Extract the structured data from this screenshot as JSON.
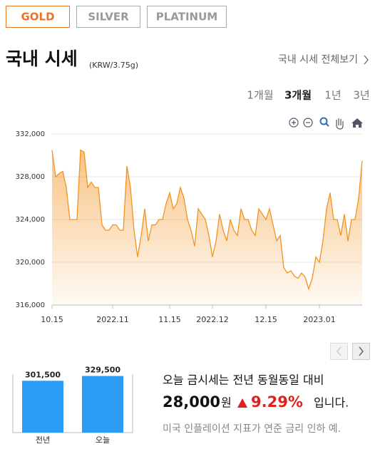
{
  "tabs": [
    "GOLD",
    "SILVER",
    "PLATINUM"
  ],
  "heading": {
    "title": "국내 시세",
    "unit": "(KRW/3.75g)",
    "link": "국내 시세 전체보기"
  },
  "periods": [
    "1개월",
    "3개월",
    "1년",
    "3년"
  ],
  "summary": {
    "line1": "오늘 금시세는 전년 동월동일 대비",
    "amount": "28,000",
    "currency": "원",
    "percent": "9.29%",
    "ending": "입니다.",
    "note": "미국 인플레이션 지표가 연준 금리 인하 예."
  },
  "chart_data": [
    {
      "type": "area",
      "color": "#f39320",
      "grid": true,
      "categories": [
        "10.15",
        null,
        null,
        null,
        null,
        null,
        null,
        null,
        null,
        null,
        null,
        null,
        null,
        null,
        null,
        null,
        null,
        "2022.11",
        null,
        null,
        null,
        null,
        null,
        null,
        null,
        null,
        null,
        null,
        null,
        null,
        null,
        null,
        null,
        "11.15",
        null,
        null,
        null,
        null,
        null,
        null,
        null,
        null,
        null,
        null,
        null,
        "2022.12",
        null,
        null,
        null,
        null,
        null,
        null,
        null,
        null,
        null,
        null,
        null,
        null,
        null,
        null,
        "12.15",
        null,
        null,
        null,
        null,
        null,
        null,
        null,
        null,
        null,
        null,
        null,
        null,
        null,
        null,
        "2023.01",
        null,
        null,
        null,
        null,
        null,
        null,
        null,
        null,
        null,
        null,
        null,
        null
      ],
      "values": [
        330500,
        328000,
        328300,
        328500,
        327000,
        324000,
        324000,
        324000,
        330500,
        330300,
        327000,
        327500,
        327000,
        327000,
        323500,
        323000,
        323000,
        323500,
        323500,
        323000,
        323000,
        329000,
        327000,
        323000,
        320500,
        322500,
        325000,
        322000,
        323500,
        323500,
        324000,
        324000,
        325500,
        326500,
        325000,
        325500,
        327000,
        326000,
        324000,
        323000,
        321500,
        325000,
        324500,
        324000,
        322500,
        320500,
        322000,
        324500,
        323000,
        322000,
        324000,
        323000,
        322500,
        325000,
        324000,
        324000,
        323000,
        322500,
        325000,
        324500,
        324000,
        325000,
        323500,
        322000,
        322500,
        319500,
        319000,
        319200,
        318700,
        318500,
        319000,
        318600,
        317500,
        318500,
        320500,
        320000,
        322000,
        325000,
        326500,
        324000,
        324000,
        322500,
        324500,
        322000,
        324000,
        324000,
        326000,
        329500
      ],
      "ylim": [
        316000,
        332000
      ],
      "yticks": [
        {
          "value": 316000,
          "label": "316,000"
        },
        {
          "value": 320000,
          "label": "320,000"
        },
        {
          "value": 324000,
          "label": "324,000"
        },
        {
          "value": 328000,
          "label": "328,000"
        },
        {
          "value": 332000,
          "label": "332,000"
        }
      ]
    },
    {
      "type": "bar",
      "color": "#2b9bf4",
      "categories": [
        "전년",
        "오늘"
      ],
      "values": [
        301500,
        329500
      ],
      "value_labels": [
        "301,500",
        "329,500"
      ],
      "ylim": [
        0,
        340000
      ]
    }
  ]
}
